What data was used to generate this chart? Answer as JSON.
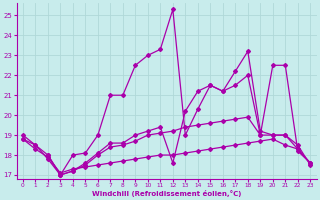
{
  "background_color": "#c8ecec",
  "grid_color": "#b0d8d8",
  "line_color": "#aa00aa",
  "xlim": [
    -0.5,
    23.5
  ],
  "ylim": [
    16.8,
    25.6
  ],
  "yticks": [
    17,
    18,
    19,
    20,
    21,
    22,
    23,
    24,
    25
  ],
  "xticks": [
    0,
    1,
    2,
    3,
    4,
    5,
    6,
    7,
    8,
    9,
    10,
    11,
    12,
    13,
    14,
    15,
    16,
    17,
    18,
    19,
    20,
    21,
    22,
    23
  ],
  "xlabel": "Windchill (Refroidissement éolien,°C)",
  "line1_x": [
    0,
    1,
    2,
    3,
    4,
    5,
    6,
    7,
    8,
    9,
    10,
    11,
    12,
    13,
    14,
    15,
    16,
    17,
    18,
    19,
    20,
    21,
    22,
    23
  ],
  "line1_y": [
    19.0,
    18.5,
    18.0,
    17.0,
    17.2,
    17.5,
    18.0,
    18.4,
    18.5,
    18.7,
    19.0,
    19.1,
    19.2,
    19.4,
    19.5,
    19.6,
    19.7,
    19.8,
    19.9,
    19.0,
    19.0,
    19.0,
    18.5,
    17.5
  ],
  "line2_x": [
    0,
    1,
    2,
    3,
    4,
    5,
    6,
    7,
    8,
    9,
    10,
    11,
    12,
    13,
    14,
    15,
    16,
    17,
    18,
    19,
    20,
    21,
    22,
    23
  ],
  "line2_y": [
    18.8,
    18.5,
    17.8,
    17.0,
    18.0,
    18.1,
    19.0,
    21.0,
    21.0,
    22.5,
    23.0,
    23.3,
    25.3,
    19.0,
    20.3,
    21.5,
    21.2,
    21.5,
    22.0,
    19.0,
    22.5,
    22.5,
    18.2,
    17.6
  ],
  "line3_x": [
    2,
    3,
    4,
    5,
    6,
    7,
    8,
    9,
    10,
    11,
    12,
    13,
    14,
    15,
    16,
    17,
    18,
    19,
    20,
    21,
    22,
    23
  ],
  "line3_y": [
    18.0,
    17.0,
    17.2,
    17.6,
    18.1,
    18.6,
    18.6,
    19.0,
    19.2,
    19.4,
    17.6,
    20.2,
    21.2,
    21.5,
    21.2,
    22.2,
    23.2,
    19.2,
    19.0,
    19.0,
    18.3,
    17.6
  ],
  "line4_x": [
    0,
    1,
    2,
    3,
    4,
    5,
    6,
    7,
    8,
    9,
    10,
    11,
    12,
    13,
    14,
    15,
    16,
    17,
    18,
    19,
    20,
    21,
    22,
    23
  ],
  "line4_y": [
    18.8,
    18.3,
    17.9,
    17.1,
    17.3,
    17.4,
    17.5,
    17.6,
    17.7,
    17.8,
    17.9,
    18.0,
    18.0,
    18.1,
    18.2,
    18.3,
    18.4,
    18.5,
    18.6,
    18.7,
    18.8,
    18.5,
    18.3,
    17.6
  ]
}
